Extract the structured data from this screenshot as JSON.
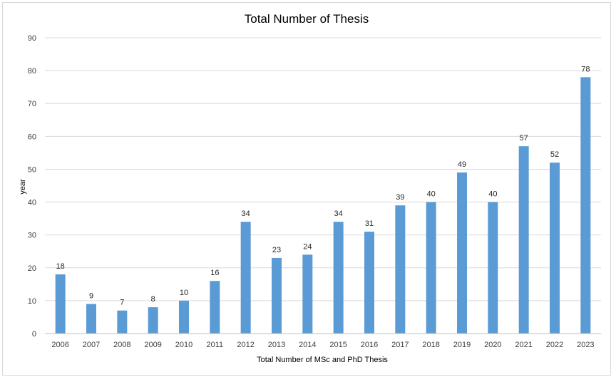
{
  "chart_data": {
    "type": "bar",
    "title": "Total Number of Thesis",
    "xlabel": "Total Number of MSc and PhD Thesis",
    "ylabel": "year",
    "categories": [
      "2006",
      "2007",
      "2008",
      "2009",
      "2010",
      "2011",
      "2012",
      "2013",
      "2014",
      "2015",
      "2016",
      "2017",
      "2018",
      "2019",
      "2020",
      "2021",
      "2022",
      "2023"
    ],
    "values": [
      18,
      9,
      7,
      8,
      10,
      16,
      34,
      23,
      24,
      34,
      31,
      39,
      40,
      49,
      40,
      57,
      52,
      78
    ],
    "ylim": [
      0,
      90
    ],
    "yticks": [
      0,
      10,
      20,
      30,
      40,
      50,
      60,
      70,
      80,
      90
    ],
    "grid": true,
    "legend": "none",
    "bar_color": "#5b9bd5",
    "data_labels": true
  }
}
